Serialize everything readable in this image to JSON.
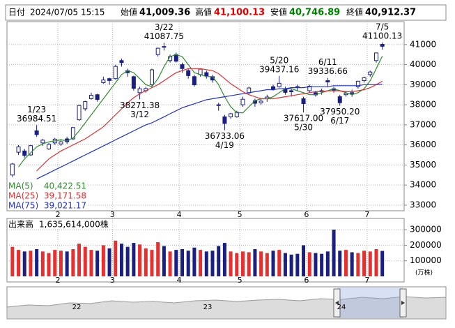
{
  "header": {
    "fields": [
      {
        "name": "日付",
        "value": "2024/07/05 15:15",
        "color": "#000000"
      },
      {
        "name": "始値",
        "value": "41,009.36",
        "color": "#000000"
      },
      {
        "name": "高値",
        "value": "41,100.13",
        "color": "#e00000"
      },
      {
        "name": "安値",
        "value": "40,746.89",
        "color": "#008000"
      },
      {
        "name": "終値",
        "value": "40,912.37",
        "color": "#000000"
      }
    ]
  },
  "chart_data": {
    "type": "candlestick",
    "candles": [
      [
        34500,
        35100,
        34400,
        35049
      ],
      [
        35634,
        35990,
        35500,
        35901
      ],
      [
        35700,
        35800,
        35370,
        35477
      ],
      [
        35500,
        36000,
        35450,
        35963
      ],
      [
        36700,
        36984.51,
        36400,
        36517
      ],
      [
        36100,
        36300,
        35950,
        36236
      ],
      [
        35800,
        36100,
        35750,
        36026
      ],
      [
        36100,
        36350,
        36000,
        36286
      ],
      [
        36050,
        36300,
        35950,
        36158
      ],
      [
        36300,
        36400,
        36050,
        36160
      ],
      [
        36300,
        36900,
        36250,
        36863
      ],
      [
        37250,
        38000,
        37200,
        37963
      ],
      [
        37800,
        38200,
        37700,
        38157
      ],
      [
        38300,
        38600,
        38250,
        38470
      ],
      [
        38500,
        38550,
        38150,
        38262
      ],
      [
        39100,
        39400,
        39050,
        39233
      ],
      [
        39300,
        39350,
        39000,
        39208
      ],
      [
        39300,
        39990,
        39250,
        39910
      ],
      [
        40200,
        40300,
        39900,
        40097
      ],
      [
        39700,
        39800,
        39400,
        39598
      ],
      [
        39400,
        39450,
        38700,
        38820
      ],
      [
        38600,
        38900,
        38271.38,
        38797
      ],
      [
        38700,
        38900,
        38600,
        38807
      ],
      [
        39000,
        39800,
        38900,
        39740
      ],
      [
        40500,
        40850,
        40400,
        40815
      ],
      [
        40900,
        41087.75,
        40700,
        40888
      ],
      [
        40200,
        40500,
        40100,
        40398
      ],
      [
        40500,
        40600,
        40100,
        40168
      ],
      [
        40000,
        40100,
        39600,
        39803
      ],
      [
        39700,
        39800,
        39300,
        39451
      ],
      [
        39400,
        39500,
        38900,
        38992
      ],
      [
        39500,
        39800,
        39400,
        39773
      ],
      [
        39600,
        39700,
        39300,
        39442
      ],
      [
        39400,
        39500,
        39100,
        39232
      ],
      [
        38000,
        38100,
        37700,
        37961
      ],
      [
        37400,
        37500,
        36733.06,
        37068
      ],
      [
        37400,
        37600,
        37300,
        37552
      ],
      [
        37400,
        37700,
        37350,
        37628
      ],
      [
        38000,
        38400,
        37900,
        38274
      ],
      [
        38600,
        38900,
        38500,
        38835
      ],
      [
        38200,
        38300,
        37900,
        38073
      ],
      [
        38100,
        38300,
        38000,
        38179
      ],
      [
        38300,
        38500,
        38150,
        38385
      ],
      [
        38900,
        39000,
        38700,
        38787
      ],
      [
        38900,
        39437.16,
        38850,
        39069
      ],
      [
        38800,
        38900,
        38500,
        38617
      ],
      [
        38700,
        38800,
        38400,
        38646
      ],
      [
        38900,
        39000,
        38700,
        38855
      ],
      [
        38300,
        38400,
        37617,
        38054
      ],
      [
        38700,
        39000,
        38600,
        38923
      ],
      [
        38600,
        38700,
        38400,
        38490
      ],
      [
        38700,
        38800,
        38500,
        38683
      ],
      [
        39200,
        39336.66,
        38900,
        39134
      ],
      [
        38800,
        38900,
        38600,
        38720
      ],
      [
        38400,
        38500,
        37950.2,
        38102
      ],
      [
        38500,
        38700,
        38400,
        38570
      ],
      [
        38600,
        38750,
        38400,
        38596
      ],
      [
        38900,
        39200,
        38800,
        39173
      ],
      [
        39200,
        39400,
        39100,
        39341
      ],
      [
        39500,
        39700,
        39400,
        39631
      ],
      [
        40200,
        40600,
        40100,
        40580
      ],
      [
        41009.36,
        41100.13,
        40746.89,
        40912.37
      ]
    ],
    "colors": {
      "up_fill": "#ffffff",
      "down_fill": "#1a1f80",
      "outline": "#1a1f80"
    },
    "xlim": [
      -0.9,
      64.6
    ],
    "xticks": [
      {
        "value": 7.5,
        "label": "2"
      },
      {
        "value": 16.5,
        "label": "3"
      },
      {
        "value": 27.5,
        "label": "4"
      },
      {
        "value": 37.5,
        "label": "5"
      },
      {
        "value": 48.5,
        "label": "6"
      },
      {
        "value": 58.5,
        "label": "7"
      }
    ],
    "ylim": [
      32720,
      42140
    ],
    "yticks": [
      33000,
      34000,
      35000,
      36000,
      37000,
      38000,
      39000,
      40000,
      41000
    ],
    "grid": true,
    "ma": [
      {
        "name": "MA(5)",
        "color": "#2e8b2e",
        "last_label": "40,422.51",
        "values": [
          null,
          34900,
          35300,
          35600,
          35900,
          36050,
          36150,
          36200,
          36250,
          36200,
          36350,
          36700,
          37100,
          37500,
          37900,
          38300,
          38700,
          39100,
          39500,
          39700,
          39600,
          39300,
          39000,
          38900,
          39300,
          39900,
          40400,
          40500,
          40400,
          40000,
          39600,
          39500,
          39400,
          39400,
          39000,
          38400,
          37900,
          37600,
          37600,
          37900,
          38200,
          38300,
          38300,
          38400,
          38600,
          38800,
          38800,
          38700,
          38600,
          38500,
          38500,
          38600,
          38700,
          38800,
          38700,
          38600,
          38500,
          38600,
          38800,
          39200,
          39800,
          40422.51
        ]
      },
      {
        "name": "MA(25)",
        "color": "#e03030",
        "last_label": "39,171.58",
        "values": [
          null,
          null,
          null,
          null,
          34700,
          35000,
          35300,
          35500,
          35700,
          35850,
          36000,
          36150,
          36300,
          36500,
          36700,
          36900,
          37200,
          37500,
          37800,
          38100,
          38350,
          38550,
          38700,
          38850,
          39000,
          39200,
          39400,
          39600,
          39700,
          39800,
          39800,
          39800,
          39750,
          39700,
          39550,
          39300,
          39050,
          38850,
          38650,
          38500,
          38400,
          38300,
          38300,
          38300,
          38350,
          38400,
          38450,
          38500,
          38550,
          38600,
          38650,
          38650,
          38700,
          38700,
          38700,
          38650,
          38650,
          38700,
          38750,
          38850,
          39000,
          39171.58
        ]
      },
      {
        "name": "MA(75)",
        "color": "#2030d0",
        "last_label": "39,021.17",
        "values": [
          null,
          null,
          null,
          null,
          34300,
          34450,
          34600,
          34750,
          34900,
          35050,
          35200,
          35350,
          35500,
          35650,
          35800,
          35950,
          36100,
          36250,
          36400,
          36550,
          36700,
          36850,
          37000,
          37100,
          37250,
          37400,
          37550,
          37700,
          37850,
          37950,
          38050,
          38150,
          38250,
          38300,
          38350,
          38400,
          38450,
          38500,
          38550,
          38600,
          38650,
          38700,
          38750,
          38750,
          38800,
          38800,
          38850,
          38850,
          38850,
          38900,
          38900,
          38900,
          38900,
          38950,
          38950,
          38950,
          38950,
          38950,
          39000,
          39000,
          39000,
          39021.17
        ]
      }
    ],
    "annotations": [
      {
        "date": "1/23",
        "price": 36984.51
      },
      {
        "date": "3/12",
        "price": 38271.38
      },
      {
        "date": "3/22",
        "price": 41087.75
      },
      {
        "date": "4/19",
        "price": 36733.06
      },
      {
        "date": "5/20",
        "price": 39437.16
      },
      {
        "date": "5/30",
        "price": 37617,
        "price_label": "37617.00"
      },
      {
        "date": "6/11",
        "price": 39336.66
      },
      {
        "date": "6/17",
        "price": 37950.2,
        "price_label": "37950.20"
      },
      {
        "date": "7/5",
        "price": 41100.13
      }
    ],
    "volume": {
      "title": "出来高",
      "total_label": "1,635,614,000株",
      "unit_label": "(万株)",
      "up_color": "#e53030",
      "down_color": "#1a1f80",
      "ylim": [
        0,
        350000
      ],
      "yticks": [
        100000,
        200000,
        300000
      ],
      "values": [
        190000,
        170000,
        160000,
        165000,
        175000,
        160000,
        150000,
        170000,
        165000,
        160000,
        175000,
        210000,
        190000,
        170000,
        165000,
        200000,
        180000,
        230000,
        210000,
        190000,
        215000,
        205000,
        180000,
        170000,
        220000,
        195000,
        160000,
        170000,
        175000,
        165000,
        185000,
        170000,
        160000,
        165000,
        195000,
        215000,
        160000,
        150000,
        160000,
        155000,
        175000,
        160000,
        150000,
        165000,
        170000,
        150000,
        140000,
        145000,
        200000,
        155000,
        150000,
        145000,
        160000,
        300000,
        165000,
        170000,
        155000,
        150000,
        165000,
        160000,
        175000,
        163561.4
      ]
    }
  },
  "navigator": {
    "labels": [
      "22",
      "23",
      "24"
    ]
  }
}
